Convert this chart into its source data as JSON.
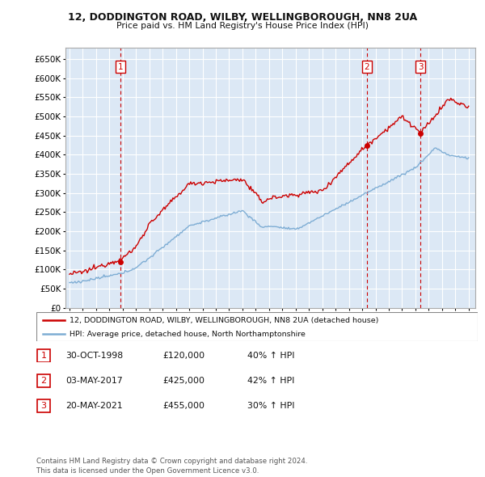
{
  "title1": "12, DODDINGTON ROAD, WILBY, WELLINGBOROUGH, NN8 2UA",
  "title2": "Price paid vs. HM Land Registry's House Price Index (HPI)",
  "legend_line1": "12, DODDINGTON ROAD, WILBY, WELLINGBOROUGH, NN8 2UA (detached house)",
  "legend_line2": "HPI: Average price, detached house, North Northamptonshire",
  "sale_color": "#cc0000",
  "hpi_color": "#7eadd4",
  "background_color": "#dce8f5",
  "grid_color": "#ffffff",
  "ylim": [
    0,
    680000
  ],
  "yticks": [
    0,
    50000,
    100000,
    150000,
    200000,
    250000,
    300000,
    350000,
    400000,
    450000,
    500000,
    550000,
    600000,
    650000
  ],
  "sales": [
    {
      "date_num": 1998.83,
      "price": 120000,
      "label": "1"
    },
    {
      "date_num": 2017.34,
      "price": 425000,
      "label": "2"
    },
    {
      "date_num": 2021.38,
      "price": 455000,
      "label": "3"
    }
  ],
  "sale_vlines": [
    1998.83,
    2017.34,
    2021.38
  ],
  "table_data": [
    [
      "1",
      "30-OCT-1998",
      "£120,000",
      "40% ↑ HPI"
    ],
    [
      "2",
      "03-MAY-2017",
      "£425,000",
      "42% ↑ HPI"
    ],
    [
      "3",
      "20-MAY-2021",
      "£455,000",
      "30% ↑ HPI"
    ]
  ],
  "footer": "Contains HM Land Registry data © Crown copyright and database right 2024.\nThis data is licensed under the Open Government Licence v3.0."
}
